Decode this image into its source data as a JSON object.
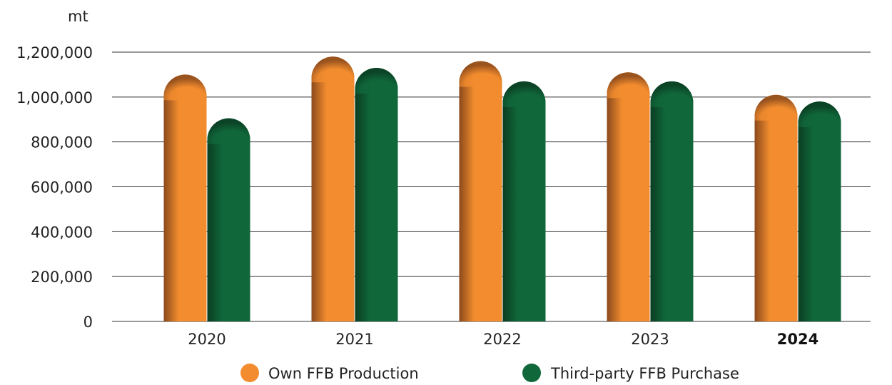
{
  "chart_data": {
    "type": "bar",
    "unit_label": "mt",
    "categories": [
      "2020",
      "2021",
      "2022",
      "2023",
      "2024"
    ],
    "highlight_category": "2024",
    "series": [
      {
        "name": "Own FFB Production",
        "color": "#F28C2E",
        "shade_color": "#8B4A1C",
        "values": [
          1100000,
          1180000,
          1160000,
          1110000,
          1010000
        ]
      },
      {
        "name": "Third-party FFB Purchase",
        "color": "#10673A",
        "shade_color": "#0A3D22",
        "values": [
          905000,
          1130000,
          1070000,
          1070000,
          980000
        ]
      }
    ],
    "y_ticks": [
      "0",
      "200,000",
      "400,000",
      "600,000",
      "800,000",
      "1,000,000",
      "1,200,000"
    ],
    "ylim": [
      0,
      1200000
    ],
    "grid": true,
    "legend_position": "bottom"
  }
}
